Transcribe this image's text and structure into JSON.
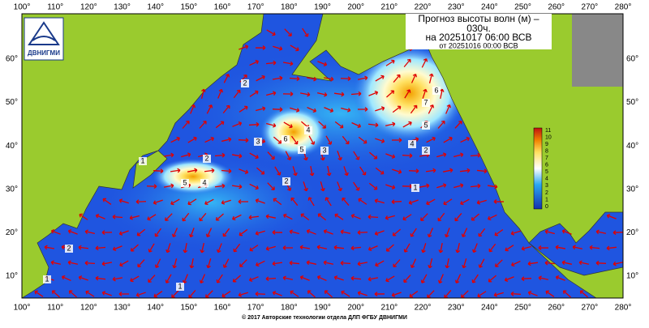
{
  "title": {
    "lines": [
      "Прогноз высоты волн (м) –",
      "030ч.",
      "на 20251017 06:00 ВСВ",
      "от 20251016 00:00 ВСВ"
    ]
  },
  "logo": {
    "text": "ДВНИГМИ"
  },
  "axes": {
    "lon_labels": [
      "100°",
      "110°",
      "120°",
      "130°",
      "140°",
      "150°",
      "160°",
      "170°",
      "180°",
      "190°",
      "200°",
      "210°",
      "220°",
      "230°",
      "240°",
      "250°",
      "260°",
      "270°",
      "280°"
    ],
    "lat_labels": [
      "10°",
      "20°",
      "30°",
      "40°",
      "50°",
      "60°"
    ]
  },
  "colorbar": {
    "labels": [
      "0",
      "1",
      "2",
      "3",
      "4",
      "5",
      "6",
      "7",
      "8",
      "9",
      "10",
      "11"
    ]
  },
  "contour_labels": [
    "2",
    "2",
    "1",
    "5",
    "4",
    "3",
    "6",
    "4",
    "5",
    "3",
    "7",
    "6",
    "5",
    "4",
    "2",
    "1",
    "2",
    "2",
    "1",
    "1"
  ],
  "footer": "© 2017 Авторские технологии отдела ДЛП ФГБУ ДВНИГМИ"
}
